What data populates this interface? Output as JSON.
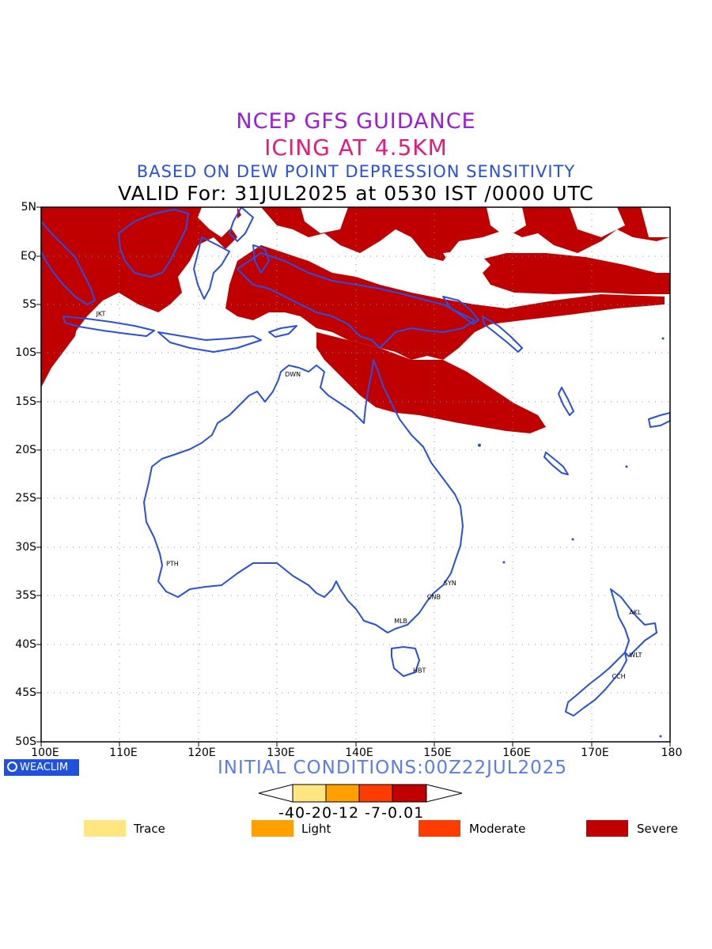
{
  "title": {
    "line1": "NCEP GFS GUIDANCE",
    "line2": "ICING AT 4.5KM",
    "line3": "BASED ON DEW POINT DEPRESSION SENSITIVITY",
    "line4": "VALID For: 31JUL2025 at 0530 IST /0000 UTC"
  },
  "axes": {
    "lat_labels": [
      "5N",
      "EQ",
      "5S",
      "10S",
      "15S",
      "20S",
      "25S",
      "30S",
      "35S",
      "40S",
      "45S",
      "50S"
    ],
    "lon_labels": [
      "100E",
      "110E",
      "120E",
      "130E",
      "140E",
      "150E",
      "160E",
      "170E",
      "180"
    ],
    "lat_range": [
      5,
      -50
    ],
    "lon_range": [
      100,
      180
    ],
    "grid": "dotted"
  },
  "cities": [
    {
      "code": "JKT",
      "lon": 107.0,
      "lat": -6.2
    },
    {
      "code": "DWN",
      "lon": 131.0,
      "lat": -12.4
    },
    {
      "code": "PTH",
      "lon": 115.9,
      "lat": -31.9
    },
    {
      "code": "SYN",
      "lon": 151.2,
      "lat": -33.9
    },
    {
      "code": "CNB",
      "lon": 149.1,
      "lat": -35.3
    },
    {
      "code": "MLB",
      "lon": 144.9,
      "lat": -37.8
    },
    {
      "code": "HBT",
      "lon": 147.3,
      "lat": -42.9
    },
    {
      "code": "AKL",
      "lon": 174.8,
      "lat": -36.9
    },
    {
      "code": "WLT",
      "lon": 174.8,
      "lat": -41.3
    },
    {
      "code": "CCH",
      "lon": 172.6,
      "lat": -43.5
    }
  ],
  "footer": {
    "logo_text": "WEACLIM",
    "initial_conditions": "INITIAL CONDITIONS:00Z22JUL2025"
  },
  "colorbar": {
    "boundaries_text": "-40-20-12 -7-0.01",
    "colors": [
      "#ffe680",
      "#ffa000",
      "#ff3c00",
      "#c00000"
    ]
  },
  "legend": [
    {
      "label": "Trace",
      "color": "#ffe680"
    },
    {
      "label": "Light",
      "color": "#ffa000"
    },
    {
      "label": "Moderate",
      "color": "#ff3c00"
    },
    {
      "label": "Severe",
      "color": "#c00000"
    }
  ],
  "colors": {
    "coastline": "#2a4fe0",
    "severe_icing": "#c00000"
  }
}
